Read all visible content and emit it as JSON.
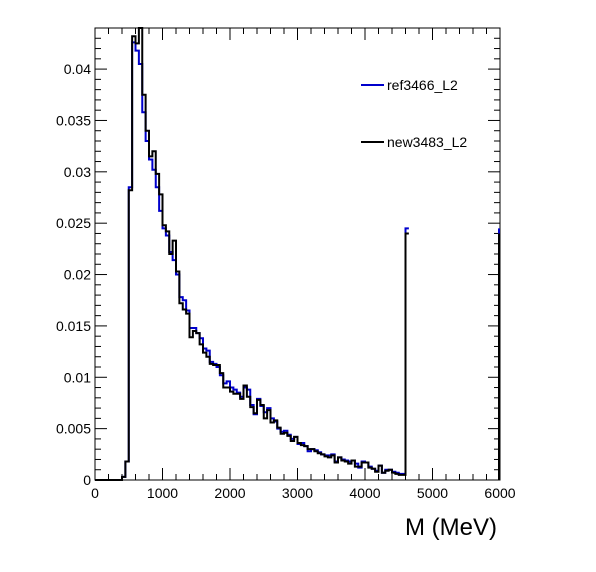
{
  "chart_data": {
    "type": "line",
    "style": "step-histogram",
    "title": "",
    "xlabel": "M (MeV)",
    "ylabel": "",
    "xlim": [
      0,
      6000
    ],
    "ylim": [
      0,
      0.044
    ],
    "x_ticks": [
      0,
      1000,
      2000,
      3000,
      4000,
      5000,
      6000
    ],
    "y_ticks": [
      0,
      0.005,
      0.01,
      0.015,
      0.02,
      0.025,
      0.03,
      0.035,
      0.04
    ],
    "y_tick_labels": [
      "0",
      "0.005",
      "0.01",
      "0.015",
      "0.02",
      "0.025",
      "0.03",
      "0.035",
      "0.04"
    ],
    "bin_width": 50,
    "grid": false,
    "legend_position": "top-right",
    "series": [
      {
        "name": "ref3466_L2",
        "color": "#0000cc",
        "values": [
          0,
          0,
          0,
          0,
          0,
          0,
          0,
          0,
          0.0003,
          0.0018,
          0.0285,
          0.0426,
          0.0418,
          0.0405,
          0.0358,
          0.033,
          0.0312,
          0.0302,
          0.0285,
          0.0262,
          0.0245,
          0.0238,
          0.0222,
          0.0214,
          0.02,
          0.0178,
          0.0175,
          0.0165,
          0.0148,
          0.0148,
          0.0143,
          0.0138,
          0.0128,
          0.0126,
          0.0115,
          0.0113,
          0.011,
          0.0102,
          0.0094,
          0.0096,
          0.009,
          0.0088,
          0.0085,
          0.0081,
          0.009,
          0.0088,
          0.0073,
          0.0064,
          0.0079,
          0.0072,
          0.0066,
          0.007,
          0.006,
          0.0057,
          0.005,
          0.0047,
          0.0048,
          0.0044,
          0.004,
          0.0042,
          0.0035,
          0.0036,
          0.0033,
          0.0028,
          0.003,
          0.0029,
          0.0027,
          0.0025,
          0.0024,
          0.0024,
          0.0025,
          0.0018,
          0.0022,
          0.002,
          0.0019,
          0.0018,
          0.0019,
          0.0016,
          0.0012,
          0.0018,
          0.0017,
          0.0013,
          0.0011,
          0.0009,
          0.0014,
          0.0007,
          0.001,
          0.001,
          0.0008,
          0.0007,
          0.0006,
          0.0006,
          0.0245
        ],
        "overflow": 0.0245
      },
      {
        "name": "new3483_L2",
        "color": "#000000",
        "values": [
          0,
          0,
          0,
          0,
          0,
          0,
          0,
          0,
          0.0003,
          0.0018,
          0.0282,
          0.0432,
          0.0425,
          0.044,
          0.0375,
          0.034,
          0.0315,
          0.032,
          0.0298,
          0.0278,
          0.0248,
          0.0242,
          0.022,
          0.0233,
          0.0203,
          0.0172,
          0.0166,
          0.0162,
          0.0139,
          0.0145,
          0.0143,
          0.0132,
          0.0124,
          0.012,
          0.0113,
          0.0112,
          0.0112,
          0.0104,
          0.009,
          0.009,
          0.0086,
          0.0084,
          0.0084,
          0.0079,
          0.0092,
          0.0081,
          0.0071,
          0.0065,
          0.0078,
          0.0073,
          0.006,
          0.0068,
          0.0056,
          0.0058,
          0.0051,
          0.0045,
          0.0046,
          0.0043,
          0.0038,
          0.0042,
          0.0036,
          0.0034,
          0.0033,
          0.003,
          0.003,
          0.0028,
          0.0026,
          0.0025,
          0.0023,
          0.0022,
          0.0024,
          0.0017,
          0.0022,
          0.0019,
          0.0018,
          0.0016,
          0.0019,
          0.0013,
          0.0013,
          0.0017,
          0.0017,
          0.0012,
          0.0011,
          0.0008,
          0.0014,
          0.0007,
          0.0009,
          0.001,
          0.0007,
          0.0006,
          0.0005,
          0.0005,
          0.024
        ],
        "overflow": 0.024
      }
    ]
  }
}
